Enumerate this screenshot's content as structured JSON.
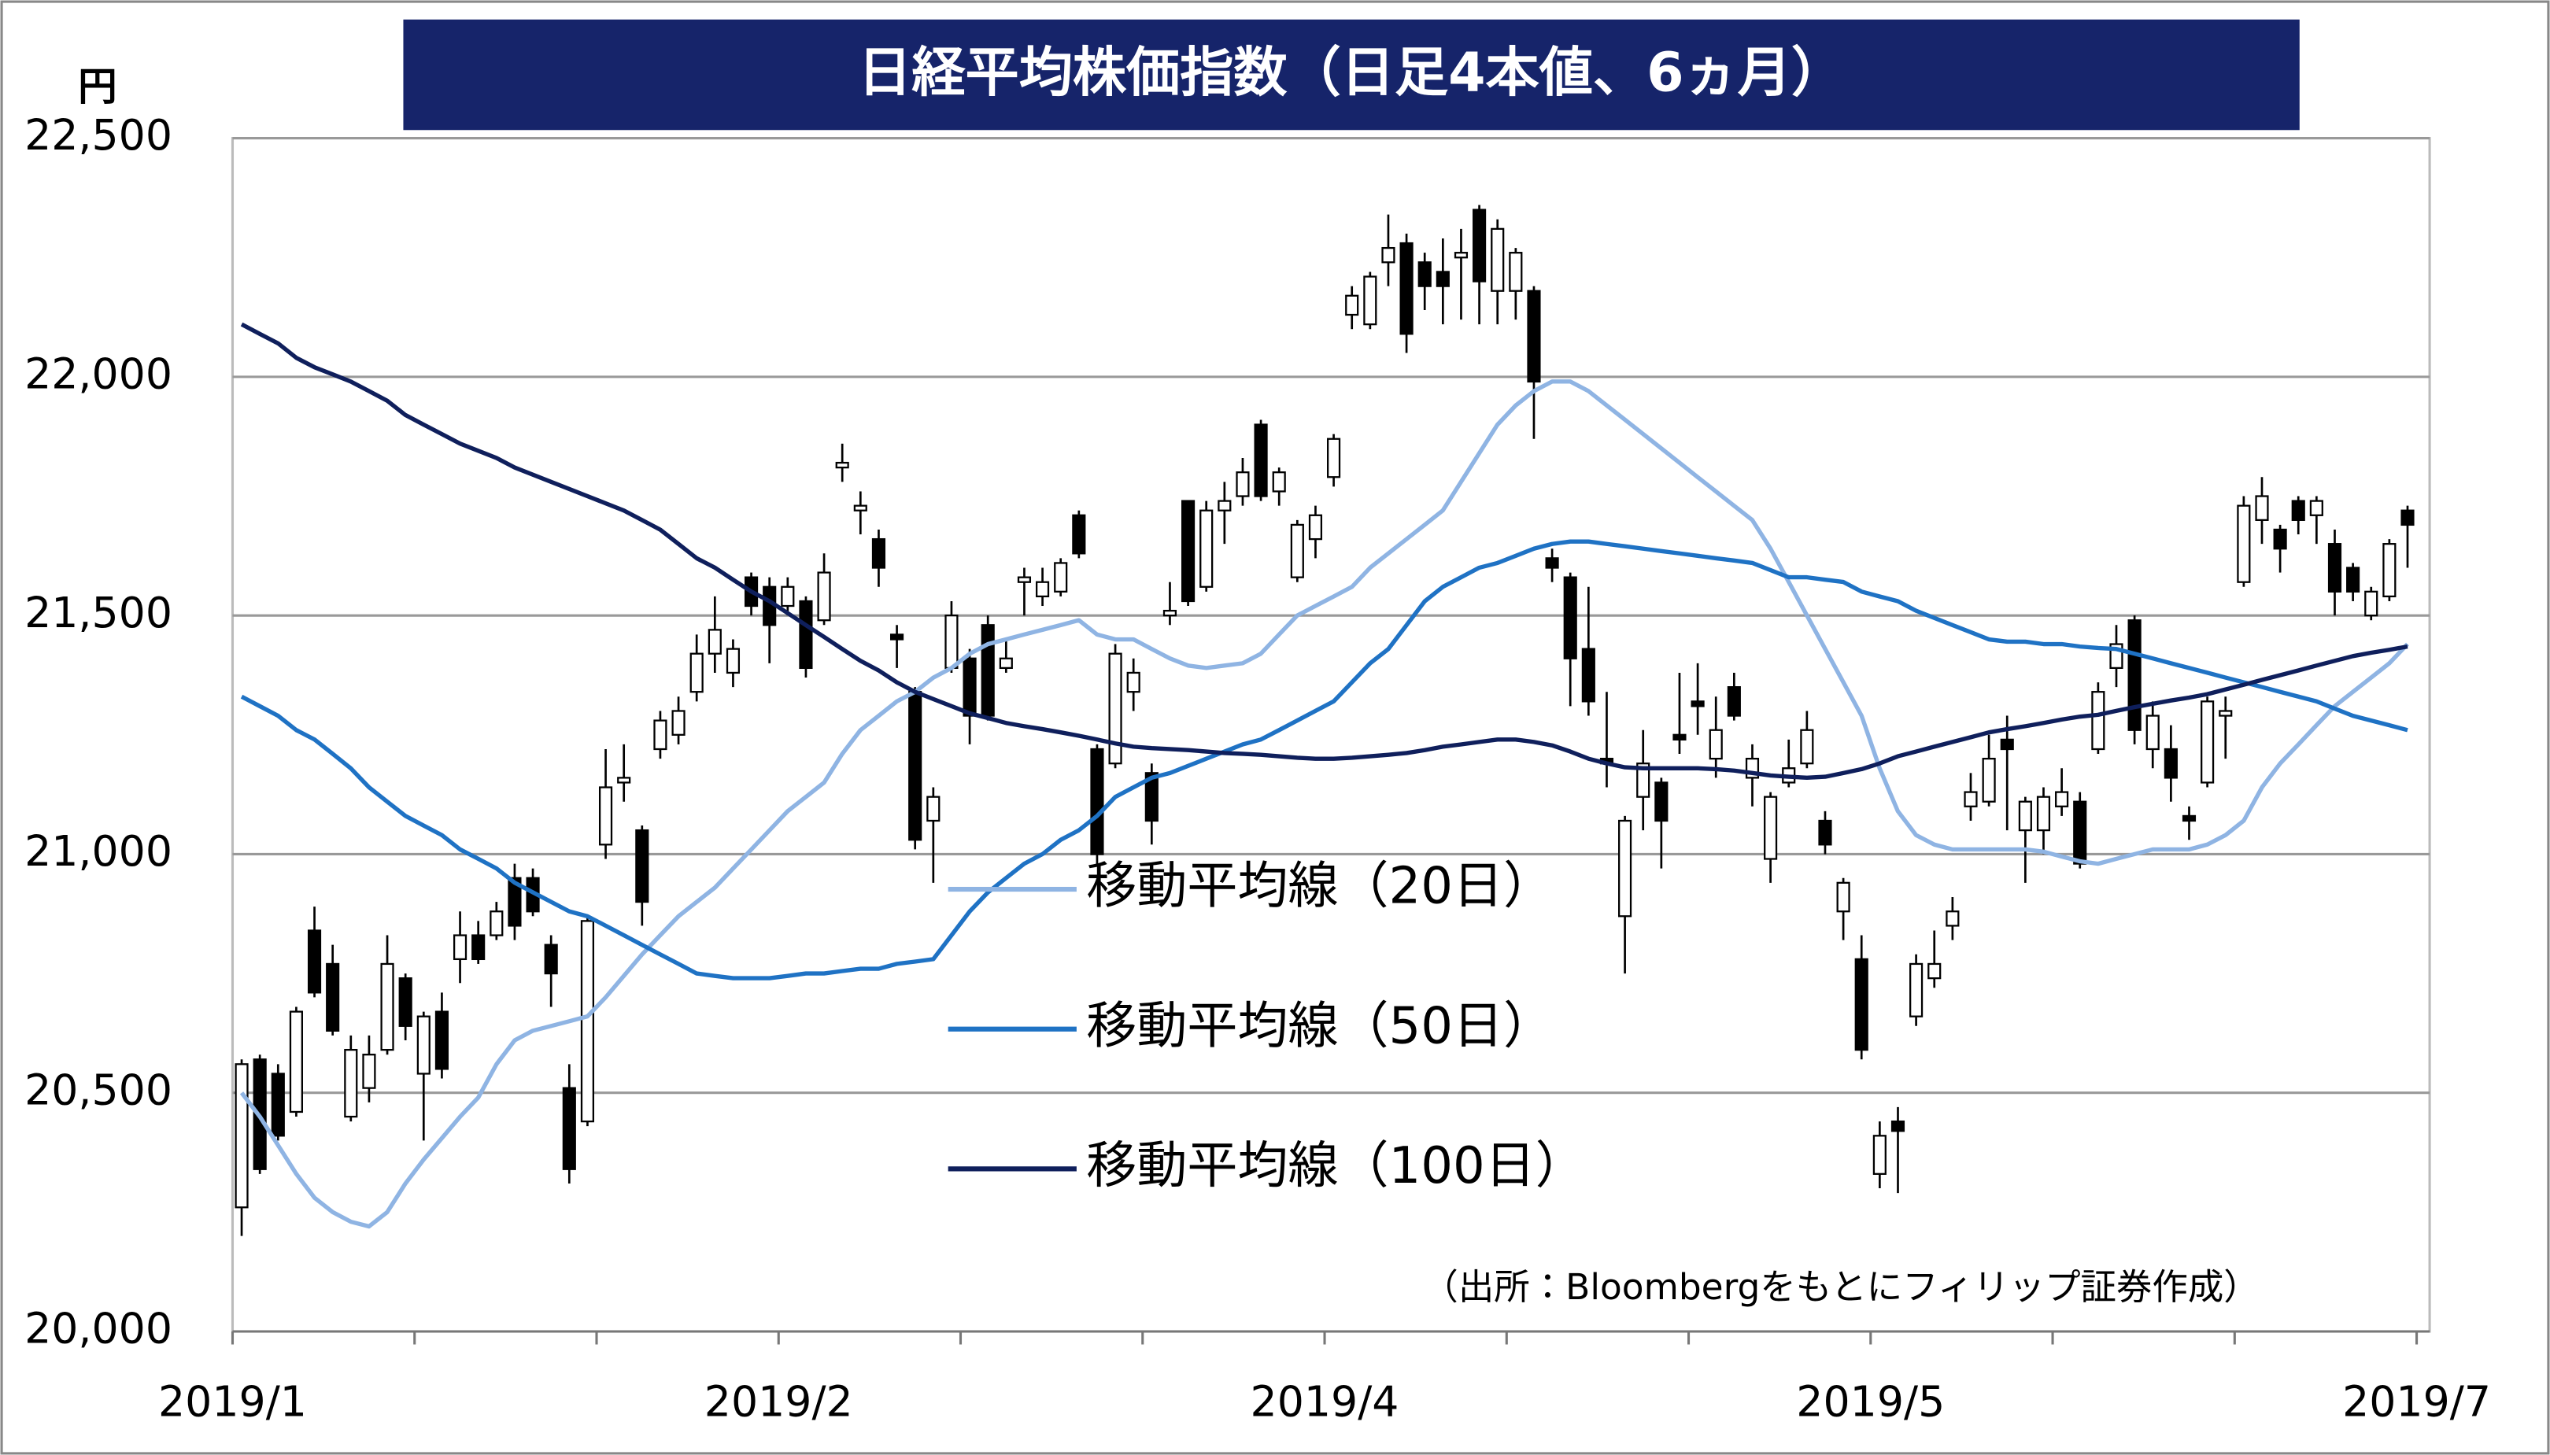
{
  "chart_data": {
    "type": "candlestick",
    "title": "日経平均株価指数（日足4本値、6ヵ月）",
    "y_unit": "円",
    "note": "（出所：Bloombergをもとにフィリップ証券作成）",
    "categories": [
      null,
      null,
      null,
      null,
      null,
      null,
      null,
      null,
      null,
      null,
      null,
      null,
      null,
      null,
      null,
      null,
      null,
      null,
      null,
      null,
      null,
      null,
      null,
      null,
      null,
      null,
      null,
      null,
      null,
      null,
      null,
      null,
      null,
      null,
      null,
      null,
      null,
      null,
      null,
      null,
      null,
      null,
      null,
      null,
      null,
      null,
      null,
      null,
      null,
      null,
      null,
      null,
      null,
      null,
      null,
      null,
      null,
      null,
      null,
      null,
      null,
      null,
      null,
      null,
      null,
      null,
      null,
      null,
      null,
      null,
      null,
      null,
      null,
      null,
      null,
      null,
      null,
      null,
      null,
      null,
      null,
      null,
      null,
      null,
      null,
      null,
      null,
      null,
      null,
      null,
      null,
      null,
      null,
      null,
      null,
      null,
      null,
      null,
      null,
      null,
      null,
      null,
      null,
      null,
      null,
      null,
      null,
      null,
      null,
      null,
      null,
      null,
      null,
      null,
      null,
      null,
      null,
      null,
      null,
      null
    ],
    "open": [
      20260,
      20570,
      20540,
      20460,
      20840,
      20770,
      20450,
      20510,
      20590,
      20740,
      20540,
      20670,
      20780,
      20830,
      20830,
      20950,
      20950,
      20810,
      20510,
      20440,
      21020,
      21150,
      21050,
      21220,
      21250,
      21340,
      21420,
      21380,
      21580,
      21560,
      21520,
      21530,
      21490,
      21810,
      21720,
      21660,
      21460,
      21340,
      21070,
      21390,
      21410,
      21480,
      21390,
      21570,
      21540,
      21550,
      21710,
      21220,
      21190,
      21340,
      21170,
      21500,
      21740,
      21560,
      21720,
      21750,
      21900,
      21760,
      21580,
      21660,
      21790,
      22130,
      22110,
      22240,
      22280,
      22240,
      22220,
      22250,
      22350,
      22180,
      22180,
      22180,
      21620,
      21580,
      21430,
      21200,
      20870,
      21120,
      21150,
      21250,
      21320,
      21200,
      21350,
      21160,
      20990,
      21150,
      21190,
      21070,
      20880,
      20780,
      20330,
      20440,
      20660,
      20740,
      20850,
      21100,
      21110,
      21240,
      21050,
      21050,
      21100,
      21110,
      21220,
      21390,
      21490,
      21220,
      21220,
      21080,
      21150,
      21290,
      21570,
      21700,
      21680,
      21740,
      21710,
      21650,
      21600,
      21500,
      21540,
      21720
    ],
    "high": [
      20570,
      20580,
      20560,
      20680,
      20890,
      20810,
      20620,
      20620,
      20830,
      20750,
      20670,
      20710,
      20880,
      20860,
      20900,
      20980,
      20970,
      20830,
      20560,
      20870,
      21220,
      21230,
      21060,
      21300,
      21330,
      21460,
      21540,
      21450,
      21590,
      21580,
      21580,
      21540,
      21630,
      21860,
      21760,
      21680,
      21480,
      21350,
      21140,
      21530,
      21430,
      21500,
      21450,
      21600,
      21600,
      21620,
      21720,
      21230,
      21440,
      21410,
      21190,
      21570,
      21740,
      21740,
      21780,
      21830,
      21910,
      21810,
      21700,
      21730,
      21880,
      22190,
      22220,
      22340,
      22300,
      22260,
      22290,
      22310,
      22360,
      22330,
      22270,
      22190,
      21640,
      21590,
      21560,
      21340,
      21080,
      21260,
      21160,
      21380,
      21400,
      21330,
      21380,
      21230,
      21130,
      21240,
      21300,
      21090,
      20950,
      20830,
      20440,
      20470,
      20790,
      20840,
      20910,
      21170,
      21250,
      21290,
      21120,
      21140,
      21180,
      21130,
      21360,
      21480,
      21500,
      21320,
      21270,
      21100,
      21330,
      21330,
      21750,
      21790,
      21690,
      21750,
      21750,
      21680,
      21610,
      21560,
      21660,
      21730
    ],
    "low": [
      20200,
      20330,
      20400,
      20450,
      20700,
      20620,
      20440,
      20480,
      20580,
      20610,
      20400,
      20530,
      20730,
      20770,
      20820,
      20820,
      20870,
      20680,
      20310,
      20430,
      20990,
      21110,
      20850,
      21200,
      21230,
      21320,
      21380,
      21350,
      21500,
      21400,
      21500,
      21370,
      21480,
      21780,
      21670,
      21560,
      21390,
      21010,
      20940,
      21380,
      21230,
      21280,
      21380,
      21500,
      21520,
      21540,
      21620,
      20980,
      21180,
      21300,
      21020,
      21480,
      21520,
      21550,
      21650,
      21730,
      21740,
      21730,
      21570,
      21620,
      21770,
      22100,
      22100,
      22190,
      22050,
      22140,
      22110,
      22120,
      22110,
      22110,
      22120,
      21870,
      21570,
      21310,
      21290,
      21140,
      20750,
      21050,
      20970,
      21210,
      21250,
      21160,
      21280,
      21100,
      20940,
      21140,
      21180,
      21000,
      20820,
      20570,
      20300,
      20290,
      20640,
      20720,
      20820,
      21070,
      21100,
      21050,
      20940,
      21000,
      21080,
      20970,
      21210,
      21350,
      21230,
      21180,
      21110,
      21030,
      21140,
      21200,
      21560,
      21650,
      21590,
      21670,
      21650,
      21500,
      21530,
      21490,
      21530,
      21600
    ],
    "close": [
      20560,
      20340,
      20410,
      20670,
      20710,
      20630,
      20590,
      20580,
      20770,
      20640,
      20660,
      20550,
      20830,
      20780,
      20880,
      20850,
      20880,
      20750,
      20340,
      20860,
      21140,
      21160,
      20900,
      21280,
      21300,
      21420,
      21470,
      21430,
      21520,
      21480,
      21560,
      21390,
      21590,
      21820,
      21730,
      21600,
      21450,
      21030,
      21120,
      21500,
      21290,
      21290,
      21410,
      21580,
      21570,
      21610,
      21630,
      21000,
      21420,
      21380,
      21070,
      21510,
      21530,
      21720,
      21740,
      21800,
      21750,
      21800,
      21690,
      21710,
      21870,
      22170,
      22210,
      22270,
      22090,
      22190,
      22190,
      22260,
      22200,
      22310,
      22260,
      21990,
      21600,
      21410,
      21320,
      21190,
      21070,
      21190,
      21070,
      21240,
      21310,
      21260,
      21290,
      21200,
      21120,
      21180,
      21260,
      21020,
      20940,
      20590,
      20410,
      20420,
      20770,
      20770,
      20880,
      21130,
      21200,
      21220,
      21110,
      21120,
      21130,
      20980,
      21340,
      21440,
      21260,
      21290,
      21160,
      21070,
      21320,
      21300,
      21730,
      21750,
      21640,
      21700,
      21740,
      21550,
      21550,
      21550,
      21650,
      21690
    ],
    "up_color": "#ffffff",
    "down_color": "#000000",
    "series": [
      {
        "name": "移動平均線（20日）",
        "color": "#8fb4e3",
        "values": [
          20500,
          20450,
          20390,
          20330,
          20280,
          20250,
          20230,
          20220,
          20250,
          20310,
          20360,
          20405,
          20450,
          20490,
          20560,
          20610,
          20630,
          20640,
          20650,
          20660,
          20700,
          20745,
          20790,
          20830,
          20870,
          20900,
          20930,
          20970,
          21010,
          21050,
          21090,
          21120,
          21150,
          21210,
          21260,
          21290,
          21320,
          21340,
          21370,
          21390,
          21420,
          21440,
          21450,
          21460,
          21470,
          21480,
          21490,
          21460,
          21450,
          21450,
          21430,
          21410,
          21395,
          21390,
          21395,
          21400,
          21420,
          21460,
          21500,
          21520,
          21540,
          21560,
          21600,
          21630,
          21660,
          21690,
          21720,
          21780,
          21840,
          21900,
          21940,
          21970,
          21990,
          21990,
          21970,
          21940,
          21910,
          21880,
          21850,
          21820,
          21790,
          21760,
          21730,
          21700,
          21640,
          21570,
          21500,
          21430,
          21360,
          21290,
          21180,
          21090,
          21040,
          21020,
          21010,
          21010,
          21010,
          21010,
          21010,
          21005,
          20995,
          20985,
          20980,
          20990,
          21000,
          21010,
          21010,
          21010,
          21020,
          21040,
          21070,
          21140,
          21190,
          21230,
          21270,
          21310,
          21340,
          21370,
          21400,
          21440
        ]
      },
      {
        "name": "移動平均線（50日）",
        "color": "#1f72c4",
        "values": [
          21330,
          21310,
          21290,
          21260,
          21240,
          21210,
          21180,
          21140,
          21110,
          21080,
          21060,
          21040,
          21010,
          20990,
          20970,
          20940,
          20920,
          20900,
          20880,
          20870,
          20850,
          20830,
          20810,
          20790,
          20770,
          20750,
          20745,
          20740,
          20740,
          20740,
          20745,
          20750,
          20750,
          20755,
          20760,
          20760,
          20770,
          20775,
          20780,
          20830,
          20880,
          20920,
          20950,
          20980,
          21000,
          21030,
          21050,
          21080,
          21120,
          21140,
          21160,
          21170,
          21185,
          21200,
          21215,
          21230,
          21240,
          21260,
          21280,
          21300,
          21320,
          21360,
          21400,
          21430,
          21480,
          21530,
          21560,
          21580,
          21600,
          21610,
          21625,
          21640,
          21650,
          21655,
          21655,
          21650,
          21645,
          21640,
          21635,
          21630,
          21625,
          21620,
          21615,
          21610,
          21595,
          21580,
          21580,
          21575,
          21570,
          21550,
          21540,
          21530,
          21510,
          21495,
          21480,
          21465,
          21450,
          21445,
          21445,
          21440,
          21440,
          21435,
          21432,
          21430,
          21420,
          21410,
          21400,
          21390,
          21380,
          21370,
          21360,
          21350,
          21340,
          21330,
          21320,
          21305,
          21290,
          21280,
          21270,
          21260
        ]
      },
      {
        "name": "移動平均線（100日）",
        "color": "#0f1f5c",
        "values": [
          22110,
          22090,
          22070,
          22040,
          22020,
          22005,
          21990,
          21970,
          21950,
          21920,
          21900,
          21880,
          21860,
          21845,
          21830,
          21810,
          21795,
          21780,
          21765,
          21750,
          21735,
          21720,
          21700,
          21680,
          21650,
          21620,
          21600,
          21575,
          21550,
          21530,
          21505,
          21480,
          21455,
          21430,
          21405,
          21385,
          21360,
          21340,
          21325,
          21310,
          21295,
          21285,
          21275,
          21268,
          21262,
          21255,
          21248,
          21240,
          21232,
          21225,
          21222,
          21220,
          21218,
          21215,
          21212,
          21210,
          21208,
          21205,
          21202,
          21200,
          21200,
          21202,
          21205,
          21208,
          21212,
          21218,
          21225,
          21230,
          21235,
          21240,
          21240,
          21235,
          21228,
          21215,
          21200,
          21190,
          21182,
          21180,
          21180,
          21180,
          21180,
          21178,
          21175,
          21170,
          21165,
          21162,
          21160,
          21162,
          21170,
          21178,
          21190,
          21205,
          21215,
          21225,
          21235,
          21245,
          21255,
          21262,
          21268,
          21275,
          21282,
          21288,
          21292,
          21300,
          21308,
          21315,
          21322,
          21328,
          21335,
          21345,
          21355,
          21365,
          21375,
          21385,
          21395,
          21405,
          21415,
          21422,
          21428,
          21435
        ]
      }
    ],
    "ylim": [
      20000,
      22500
    ],
    "yticks": [
      {
        "value": 20000,
        "label": "20,000"
      },
      {
        "value": 20500,
        "label": "20,500"
      },
      {
        "value": 21000,
        "label": "21,000"
      },
      {
        "value": 21500,
        "label": "21,500"
      },
      {
        "value": 22000,
        "label": "22,000"
      },
      {
        "value": 22500,
        "label": "22,500"
      }
    ],
    "xlim": [
      0,
      120
    ],
    "xticks": [
      {
        "value": 0,
        "label": "2019/1"
      },
      {
        "value": 30,
        "label": "2019/2"
      },
      {
        "value": 60,
        "label": "2019/4"
      },
      {
        "value": 90,
        "label": "2019/5"
      },
      {
        "value": 120,
        "label": "2019/7"
      }
    ],
    "xminor": [
      10,
      20,
      40,
      50,
      70,
      80,
      100,
      110
    ],
    "grid": true,
    "legend": "center"
  }
}
